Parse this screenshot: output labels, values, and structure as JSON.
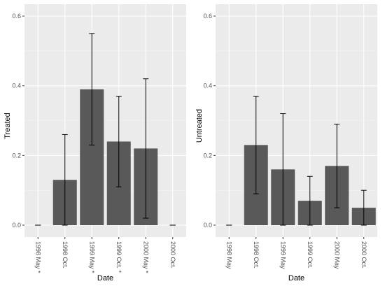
{
  "chart_data": [
    {
      "type": "bar",
      "xlabel": "Date",
      "ylabel": "Treated",
      "ylim": [
        0,
        0.6
      ],
      "yticks": [
        0.0,
        0.2,
        0.4,
        0.6
      ],
      "ytick_labels": [
        "0.0",
        "0.2",
        "0.4",
        "0.6"
      ],
      "categories": [
        "1998 May *",
        "1998 Oct.",
        "1999 May *",
        "1999 Oct. *",
        "2000 May *",
        "2000 Oct."
      ],
      "values": [
        0.0,
        0.13,
        0.39,
        0.24,
        0.22,
        0.0
      ],
      "error_low": [
        0.0,
        0.0,
        0.23,
        0.11,
        0.02,
        0.0
      ],
      "error_high": [
        0.0,
        0.26,
        0.55,
        0.37,
        0.42,
        0.0
      ],
      "bar_color": "#595959",
      "panel_background": "#ebebeb",
      "grid": true
    },
    {
      "type": "bar",
      "xlabel": "Date",
      "ylabel": "Untreated",
      "ylim": [
        0,
        0.6
      ],
      "yticks": [
        0.0,
        0.2,
        0.4,
        0.6
      ],
      "ytick_labels": [
        "0.0",
        "0.2",
        "0.4",
        "0.6"
      ],
      "categories": [
        "1998 May",
        "1998 Oct.",
        "1999 May",
        "1999 Oct.",
        "2000 May",
        "2000 Oct."
      ],
      "values": [
        0.0,
        0.23,
        0.16,
        0.07,
        0.17,
        0.05
      ],
      "error_low": [
        0.0,
        0.09,
        0.0,
        0.0,
        0.05,
        0.0
      ],
      "error_high": [
        0.0,
        0.37,
        0.32,
        0.14,
        0.29,
        0.1
      ],
      "bar_color": "#595959",
      "panel_background": "#ebebeb",
      "grid": true
    }
  ]
}
